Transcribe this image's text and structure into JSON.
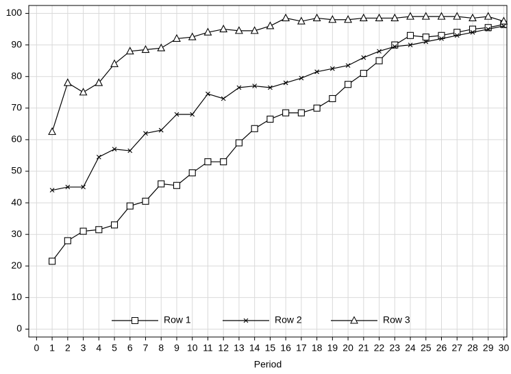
{
  "chart_data": {
    "type": "line",
    "x_label": "Period",
    "x": [
      1,
      2,
      3,
      4,
      5,
      6,
      7,
      8,
      9,
      10,
      11,
      12,
      13,
      14,
      15,
      16,
      17,
      18,
      19,
      20,
      21,
      22,
      23,
      24,
      25,
      26,
      27,
      28,
      29,
      30
    ],
    "series": [
      {
        "name": "Row 1",
        "color": "#000000",
        "marker": "square",
        "values": [
          21.5,
          28,
          31,
          31.5,
          33,
          39,
          40.5,
          46,
          45.5,
          49.5,
          53,
          53,
          59,
          63.5,
          66.5,
          68.5,
          68.5,
          70,
          73,
          77.5,
          81,
          85,
          90,
          93,
          92.5,
          93,
          94,
          95,
          95.5,
          96.5
        ]
      },
      {
        "name": "Row 2",
        "color": "#000000",
        "marker": "x",
        "values": [
          44,
          45,
          45,
          54.5,
          57,
          56.5,
          62,
          63,
          68,
          68,
          74.5,
          73,
          76.5,
          77,
          76.5,
          78,
          79.5,
          81.5,
          82.5,
          83.5,
          86,
          88,
          89.5,
          90,
          91,
          92,
          93,
          94,
          95,
          96
        ]
      },
      {
        "name": "Row 3",
        "color": "#000000",
        "marker": "triangle",
        "values": [
          62.5,
          78,
          75,
          78,
          84,
          88,
          88.5,
          89,
          92,
          92.5,
          94,
          95,
          94.5,
          94.5,
          96,
          98.5,
          97.5,
          98.5,
          98,
          98,
          98.5,
          98.5,
          98.5,
          99,
          99,
          99,
          99,
          98.5,
          99,
          97.5
        ]
      }
    ],
    "xlim": [
      -0.5,
      30.2
    ],
    "ylim": [
      -2.5,
      102.5
    ],
    "xticks": [
      0,
      1,
      2,
      3,
      4,
      5,
      6,
      7,
      8,
      9,
      10,
      11,
      12,
      13,
      14,
      15,
      16,
      17,
      18,
      19,
      20,
      21,
      22,
      23,
      24,
      25,
      26,
      27,
      28,
      29,
      30
    ],
    "yticks": [
      0,
      10,
      20,
      30,
      40,
      50,
      60,
      70,
      80,
      90,
      100
    ],
    "grid": true,
    "legend": "bottom"
  }
}
